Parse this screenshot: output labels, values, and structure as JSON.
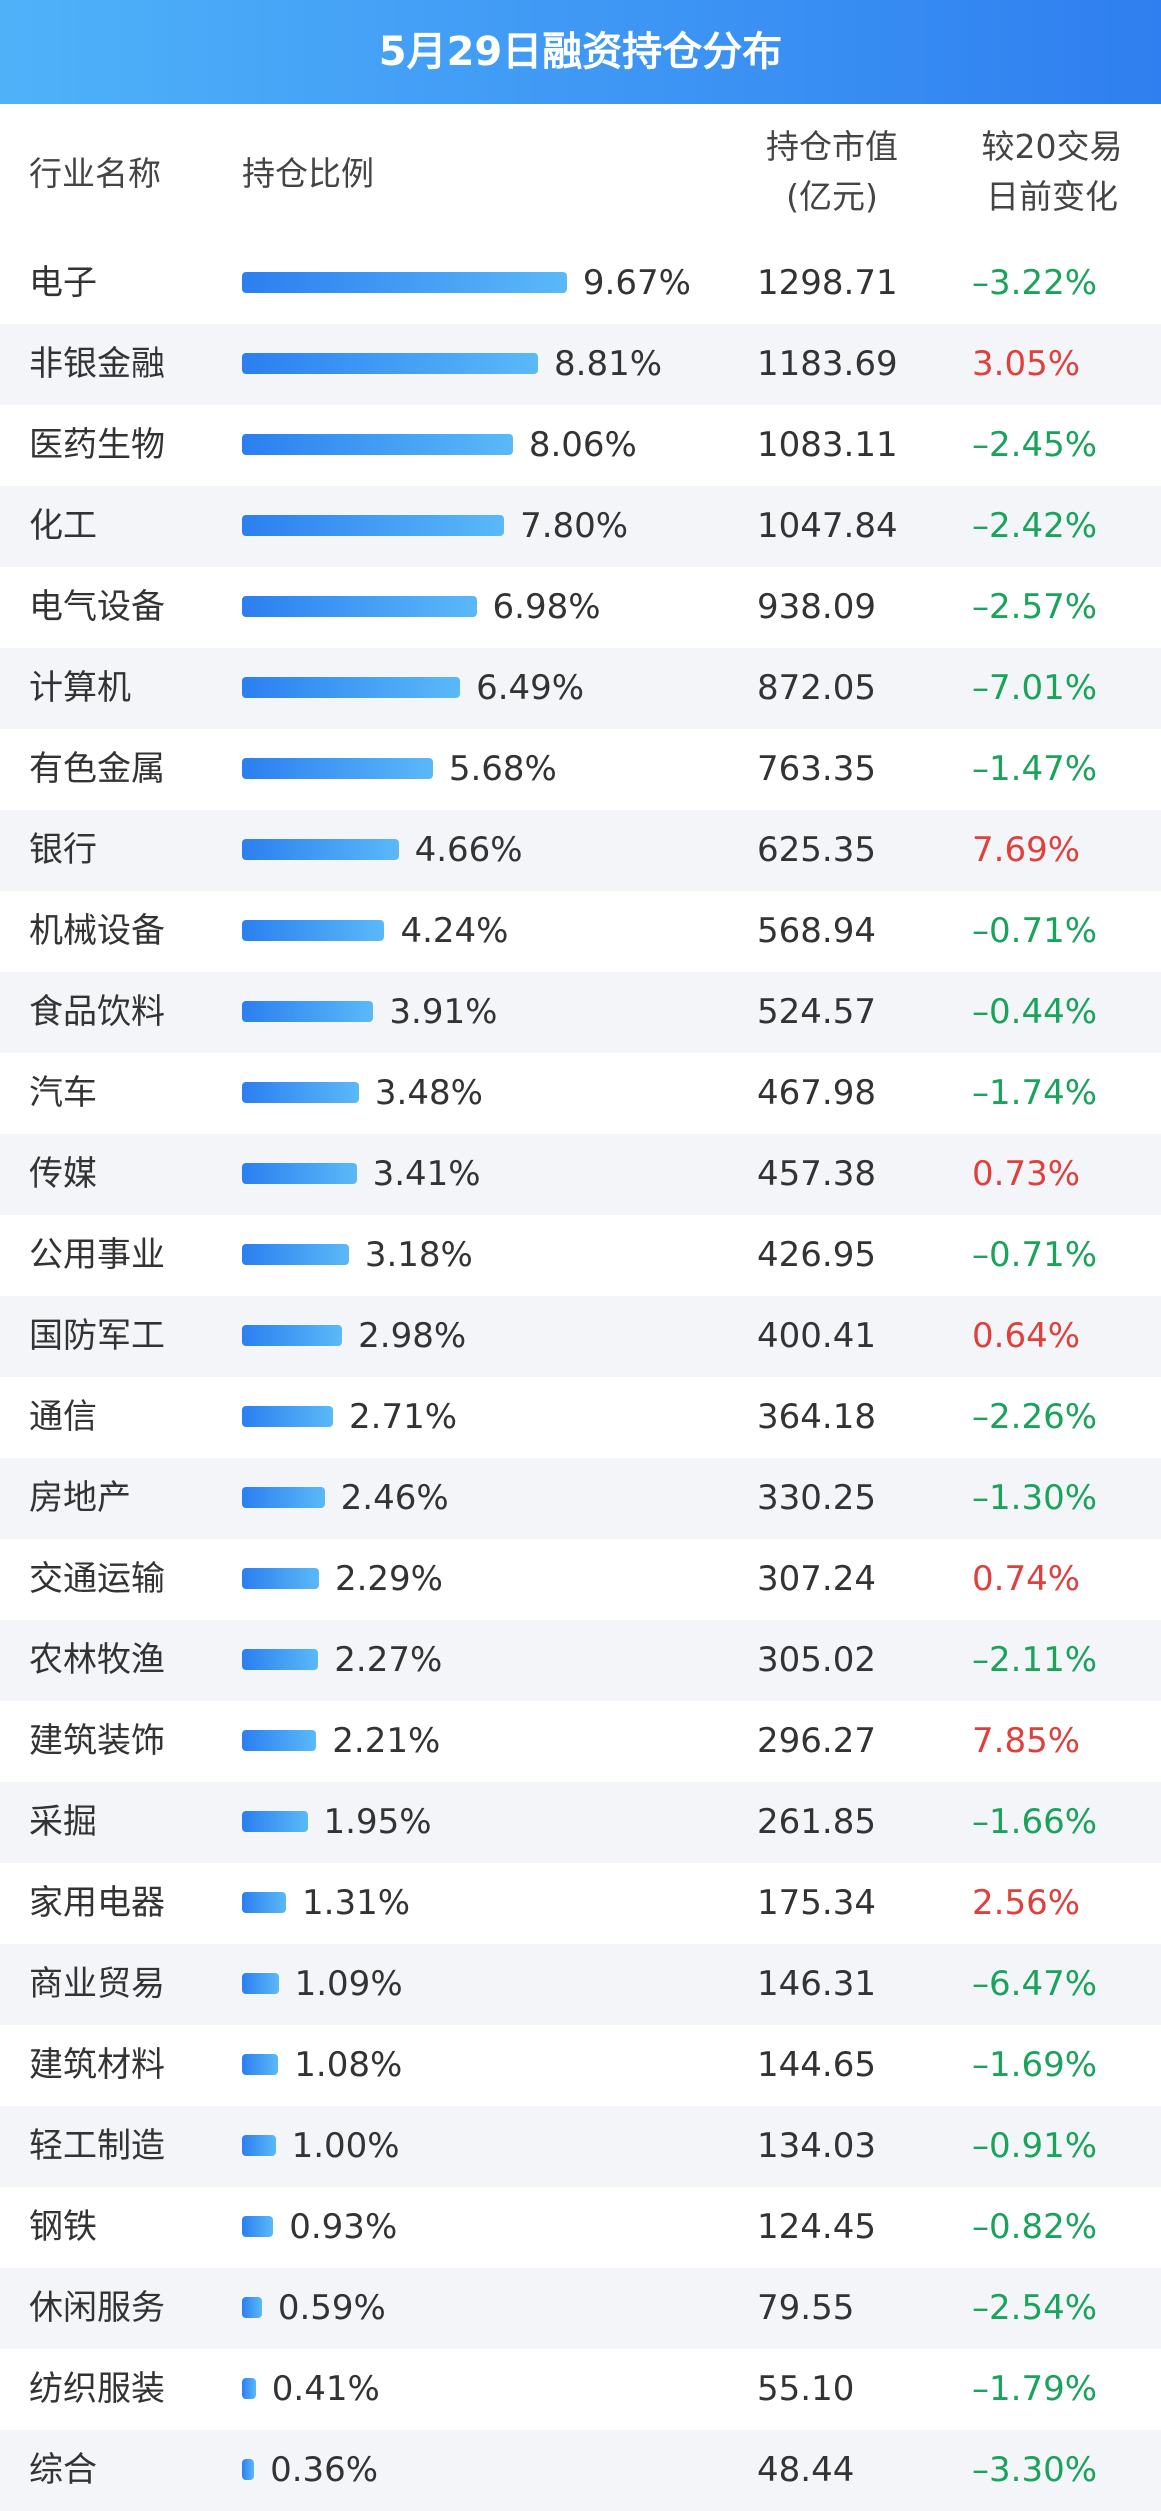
{
  "title": "5月29日融资持仓分布",
  "header": {
    "name": "行业名称",
    "share": "持仓比例",
    "value": [
      "持仓市值",
      "(亿元)"
    ],
    "change": [
      "较20交易",
      "日前变化"
    ]
  },
  "colors": {
    "positive": "#e0403c",
    "negative": "#1aa35a"
  },
  "table": {
    "rows": [
      {
        "name": "电子",
        "share": 9.67,
        "share_label": "9.67%",
        "value": "1298.71",
        "change": "–3.22%"
      },
      {
        "name": "非银金融",
        "share": 8.81,
        "share_label": "8.81%",
        "value": "1183.69",
        "change": "3.05%"
      },
      {
        "name": "医药生物",
        "share": 8.06,
        "share_label": "8.06%",
        "value": "1083.11",
        "change": "–2.45%"
      },
      {
        "name": "化工",
        "share": 7.8,
        "share_label": "7.80%",
        "value": "1047.84",
        "change": "–2.42%"
      },
      {
        "name": "电气设备",
        "share": 6.98,
        "share_label": "6.98%",
        "value": "938.09",
        "change": "–2.57%"
      },
      {
        "name": "计算机",
        "share": 6.49,
        "share_label": "6.49%",
        "value": "872.05",
        "change": "–7.01%"
      },
      {
        "name": "有色金属",
        "share": 5.68,
        "share_label": "5.68%",
        "value": "763.35",
        "change": "–1.47%"
      },
      {
        "name": "银行",
        "share": 4.66,
        "share_label": "4.66%",
        "value": "625.35",
        "change": "7.69%"
      },
      {
        "name": "机械设备",
        "share": 4.24,
        "share_label": "4.24%",
        "value": "568.94",
        "change": "–0.71%"
      },
      {
        "name": "食品饮料",
        "share": 3.91,
        "share_label": "3.91%",
        "value": "524.57",
        "change": "–0.44%"
      },
      {
        "name": "汽车",
        "share": 3.48,
        "share_label": "3.48%",
        "value": "467.98",
        "change": "–1.74%"
      },
      {
        "name": "传媒",
        "share": 3.41,
        "share_label": "3.41%",
        "value": "457.38",
        "change": "0.73%"
      },
      {
        "name": "公用事业",
        "share": 3.18,
        "share_label": "3.18%",
        "value": "426.95",
        "change": "–0.71%"
      },
      {
        "name": "国防军工",
        "share": 2.98,
        "share_label": "2.98%",
        "value": "400.41",
        "change": "0.64%"
      },
      {
        "name": "通信",
        "share": 2.71,
        "share_label": "2.71%",
        "value": "364.18",
        "change": "–2.26%"
      },
      {
        "name": "房地产",
        "share": 2.46,
        "share_label": "2.46%",
        "value": "330.25",
        "change": "–1.30%"
      },
      {
        "name": "交通运输",
        "share": 2.29,
        "share_label": "2.29%",
        "value": "307.24",
        "change": "0.74%"
      },
      {
        "name": "农林牧渔",
        "share": 2.27,
        "share_label": "2.27%",
        "value": "305.02",
        "change": "–2.11%"
      },
      {
        "name": "建筑装饰",
        "share": 2.21,
        "share_label": "2.21%",
        "value": "296.27",
        "change": "7.85%"
      },
      {
        "name": "采掘",
        "share": 1.95,
        "share_label": "1.95%",
        "value": "261.85",
        "change": "–1.66%"
      },
      {
        "name": "家用电器",
        "share": 1.31,
        "share_label": "1.31%",
        "value": "175.34",
        "change": "2.56%"
      },
      {
        "name": "商业贸易",
        "share": 1.09,
        "share_label": "1.09%",
        "value": "146.31",
        "change": "–6.47%"
      },
      {
        "name": "建筑材料",
        "share": 1.08,
        "share_label": "1.08%",
        "value": "144.65",
        "change": "–1.69%"
      },
      {
        "name": "轻工制造",
        "share": 1.0,
        "share_label": "1.00%",
        "value": "134.03",
        "change": "–0.91%"
      },
      {
        "name": "钢铁",
        "share": 0.93,
        "share_label": "0.93%",
        "value": "124.45",
        "change": "–0.82%"
      },
      {
        "name": "休闲服务",
        "share": 0.59,
        "share_label": "0.59%",
        "value": "79.55",
        "change": "–2.54%"
      },
      {
        "name": "纺织服装",
        "share": 0.41,
        "share_label": "0.41%",
        "value": "55.10",
        "change": "–1.79%"
      },
      {
        "name": "综合",
        "share": 0.36,
        "share_label": "0.36%",
        "value": "48.44",
        "change": "–3.30%"
      }
    ]
  }
}
